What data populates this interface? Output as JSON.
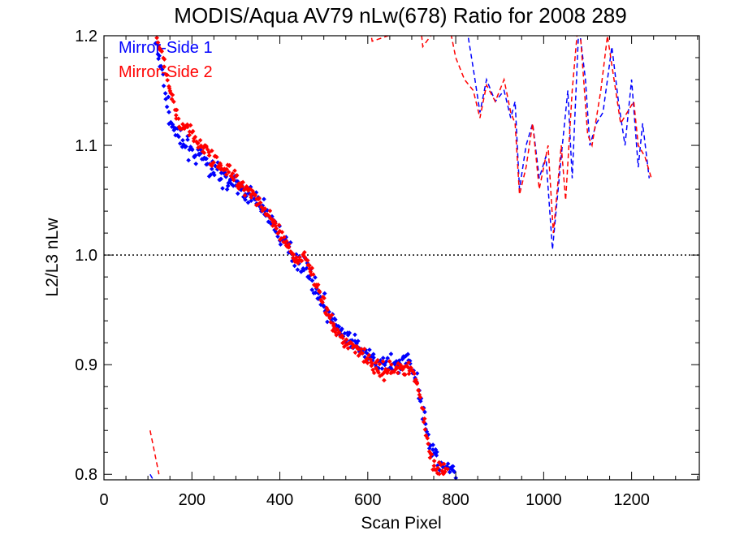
{
  "chart_data": {
    "type": "scatter",
    "title": "MODIS/Aqua AV79 nLw(678) Ratio for 2008 289",
    "xlabel": "Scan Pixel",
    "ylabel": "L2/L3 nLw",
    "xlim": [
      0,
      1354
    ],
    "ylim": [
      0.795,
      1.2
    ],
    "x_ticks": [
      0,
      200,
      400,
      600,
      800,
      1000,
      1200
    ],
    "x_minor_step": 50,
    "y_ticks": [
      0.8,
      0.9,
      1.0,
      1.1,
      1.2
    ],
    "y_tick_labels": [
      "0.8",
      "0.9",
      "1.0",
      "1.1",
      "1.2"
    ],
    "y_minor_step": 0.02,
    "reference_line": {
      "y": 1.0,
      "style": "dotted",
      "color": "#000000"
    },
    "legend_position": "top-left",
    "series": [
      {
        "name": "Mirror-Side 1",
        "color": "#0000ff",
        "points_trend": [
          [
            105,
            1.22
          ],
          [
            130,
            1.17
          ],
          [
            150,
            1.125
          ],
          [
            170,
            1.105
          ],
          [
            200,
            1.095
          ],
          [
            230,
            1.085
          ],
          [
            260,
            1.075
          ],
          [
            300,
            1.062
          ],
          [
            330,
            1.055
          ],
          [
            360,
            1.045
          ],
          [
            390,
            1.025
          ],
          [
            420,
            1.005
          ],
          [
            440,
            0.995
          ],
          [
            460,
            0.99
          ],
          [
            480,
            0.97
          ],
          [
            500,
            0.955
          ],
          [
            520,
            0.94
          ],
          [
            550,
            0.925
          ],
          [
            580,
            0.915
          ],
          [
            620,
            0.9
          ],
          [
            660,
            0.9
          ],
          [
            690,
            0.905
          ],
          [
            710,
            0.89
          ],
          [
            720,
            0.87
          ],
          [
            740,
            0.83
          ],
          [
            760,
            0.81
          ],
          [
            800,
            0.8
          ]
        ],
        "points_spread": 0.014,
        "points_count": 330,
        "line_trend": [
          [
            105,
            0.8
          ],
          [
            112,
            0.795
          ]
        ],
        "line_upper": [
          [
            820,
            1.22
          ],
          [
            840,
            1.17
          ],
          [
            855,
            1.13
          ],
          [
            870,
            1.16
          ],
          [
            890,
            1.14
          ],
          [
            910,
            1.15
          ],
          [
            925,
            1.125
          ],
          [
            935,
            1.14
          ],
          [
            945,
            1.06
          ],
          [
            960,
            1.1
          ],
          [
            975,
            1.12
          ],
          [
            990,
            1.07
          ],
          [
            1005,
            1.09
          ],
          [
            1020,
            1.005
          ],
          [
            1040,
            1.09
          ],
          [
            1055,
            1.15
          ],
          [
            1065,
            1.07
          ],
          [
            1080,
            1.21
          ],
          [
            1095,
            1.16
          ],
          [
            1105,
            1.1
          ],
          [
            1120,
            1.12
          ],
          [
            1135,
            1.13
          ],
          [
            1145,
            1.16
          ],
          [
            1155,
            1.19
          ],
          [
            1170,
            1.14
          ],
          [
            1185,
            1.1
          ],
          [
            1200,
            1.16
          ],
          [
            1215,
            1.08
          ],
          [
            1225,
            1.12
          ],
          [
            1240,
            1.07
          ]
        ]
      },
      {
        "name": "Mirror-Side 2",
        "color": "#ff0000",
        "points_trend": [
          [
            110,
            1.21
          ],
          [
            130,
            1.185
          ],
          [
            150,
            1.15
          ],
          [
            170,
            1.12
          ],
          [
            200,
            1.11
          ],
          [
            230,
            1.095
          ],
          [
            260,
            1.085
          ],
          [
            300,
            1.07
          ],
          [
            330,
            1.06
          ],
          [
            360,
            1.045
          ],
          [
            390,
            1.025
          ],
          [
            420,
            1.005
          ],
          [
            440,
            0.995
          ],
          [
            460,
            1.0
          ],
          [
            480,
            0.975
          ],
          [
            500,
            0.955
          ],
          [
            520,
            0.935
          ],
          [
            550,
            0.92
          ],
          [
            580,
            0.915
          ],
          [
            620,
            0.895
          ],
          [
            660,
            0.895
          ],
          [
            690,
            0.9
          ],
          [
            710,
            0.885
          ],
          [
            720,
            0.87
          ],
          [
            740,
            0.82
          ],
          [
            760,
            0.805
          ],
          [
            780,
            0.8
          ]
        ],
        "points_spread": 0.012,
        "points_count": 330,
        "line_trend": [
          [
            105,
            0.84
          ],
          [
            115,
            0.82
          ],
          [
            125,
            0.8
          ]
        ],
        "line_upper": [
          [
            600,
            1.22
          ],
          [
            610,
            1.195
          ],
          [
            720,
            1.21
          ],
          [
            725,
            1.19
          ],
          [
            780,
            1.22
          ],
          [
            800,
            1.18
          ],
          [
            820,
            1.16
          ],
          [
            840,
            1.15
          ],
          [
            855,
            1.125
          ],
          [
            870,
            1.155
          ],
          [
            890,
            1.14
          ],
          [
            910,
            1.16
          ],
          [
            925,
            1.13
          ],
          [
            935,
            1.12
          ],
          [
            945,
            1.055
          ],
          [
            960,
            1.08
          ],
          [
            975,
            1.12
          ],
          [
            990,
            1.06
          ],
          [
            1010,
            1.1
          ],
          [
            1022,
            1.02
          ],
          [
            1040,
            1.1
          ],
          [
            1050,
            1.05
          ],
          [
            1065,
            1.15
          ],
          [
            1080,
            1.22
          ],
          [
            1100,
            1.11
          ],
          [
            1110,
            1.1
          ],
          [
            1130,
            1.15
          ],
          [
            1145,
            1.2
          ],
          [
            1160,
            1.16
          ],
          [
            1175,
            1.12
          ],
          [
            1190,
            1.13
          ],
          [
            1205,
            1.14
          ],
          [
            1215,
            1.1
          ],
          [
            1230,
            1.09
          ],
          [
            1245,
            1.07
          ]
        ]
      }
    ]
  }
}
